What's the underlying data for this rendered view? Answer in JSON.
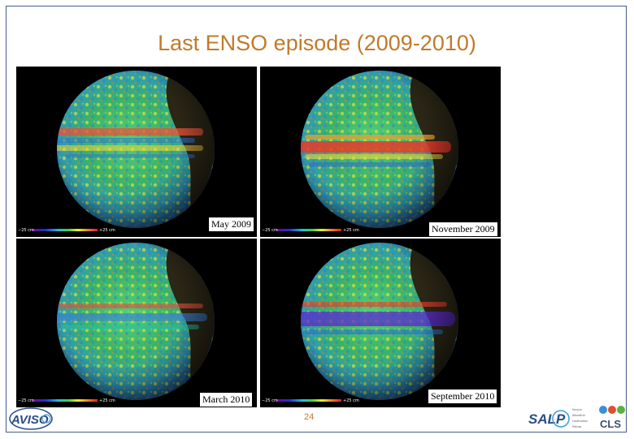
{
  "slide": {
    "title": "Last ENSO episode (2009-2010)",
    "page_number": "24"
  },
  "panels": [
    {
      "label": "May 2009",
      "scale_min": "−25 cm",
      "scale_max": "+25 cm"
    },
    {
      "label": "November 2009",
      "scale_min": "−25 cm",
      "scale_max": "+25 cm"
    },
    {
      "label": "March 2010",
      "scale_min": "−25 cm",
      "scale_max": "+25 cm"
    },
    {
      "label": "September 2010",
      "scale_min": "−25 cm",
      "scale_max": "+25 cm"
    }
  ],
  "logos": {
    "aviso": "AVISO",
    "salp": "SALP",
    "cls": "CLS",
    "salp_lines": [
      "Service",
      "Altimétrie",
      "Localisation",
      "Précise"
    ]
  },
  "colors": {
    "title": "#c07a2a",
    "frame": "#3f5f8f",
    "logo_blue": "#2a4e86"
  }
}
